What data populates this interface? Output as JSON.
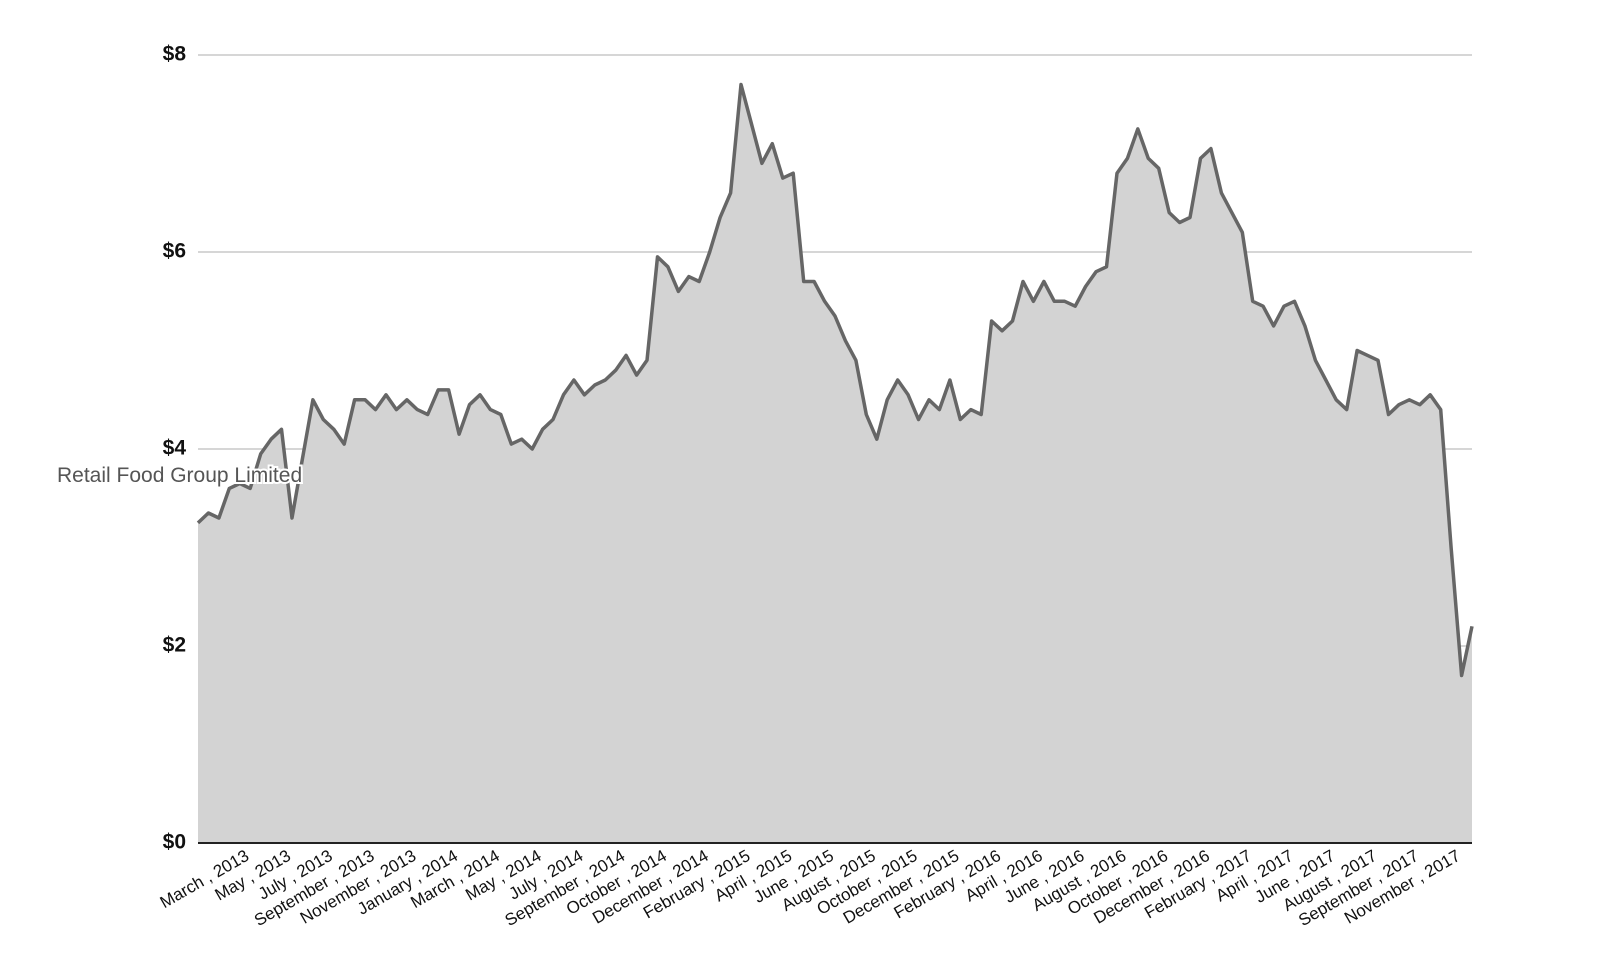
{
  "chart_data": {
    "type": "area",
    "categories": [
      null,
      null,
      null,
      null,
      null,
      "March , 2013",
      null,
      null,
      null,
      "May , 2013",
      null,
      null,
      null,
      "July , 2013",
      null,
      null,
      null,
      "September , 2013",
      null,
      null,
      null,
      "November , 2013",
      null,
      null,
      null,
      "January , 2014",
      null,
      null,
      null,
      "March , 2014",
      null,
      null,
      null,
      "May , 2014",
      null,
      null,
      null,
      "July , 2014",
      null,
      null,
      null,
      "September , 2014",
      null,
      null,
      null,
      "October , 2014",
      null,
      null,
      null,
      "December , 2014",
      null,
      null,
      null,
      "February , 2015",
      null,
      null,
      null,
      "April , 2015",
      null,
      null,
      null,
      "June , 2015",
      null,
      null,
      null,
      "August , 2015",
      null,
      null,
      null,
      "October , 2015",
      null,
      null,
      null,
      "December , 2015",
      null,
      null,
      null,
      "February , 2016",
      null,
      null,
      null,
      "April , 2016",
      null,
      null,
      null,
      "June , 2016",
      null,
      null,
      null,
      "August , 2016",
      null,
      null,
      null,
      "October , 2016",
      null,
      null,
      null,
      "December , 2016",
      null,
      null,
      null,
      "February , 2017",
      null,
      null,
      null,
      "April , 2017",
      null,
      null,
      null,
      "June , 2017",
      null,
      null,
      null,
      "August , 2017",
      null,
      null,
      null,
      "September , 2017",
      null,
      null,
      null,
      "November , 2017",
      null
    ],
    "series": [
      {
        "name": "Retail Food Group Limited",
        "color": "#666666",
        "fill": "#d3d3d3",
        "values": [
          3.25,
          3.35,
          3.3,
          3.6,
          3.65,
          3.6,
          3.95,
          4.1,
          4.2,
          3.3,
          3.9,
          4.5,
          4.3,
          4.2,
          4.05,
          4.5,
          4.5,
          4.4,
          4.55,
          4.4,
          4.5,
          4.4,
          4.35,
          4.6,
          4.6,
          4.15,
          4.45,
          4.55,
          4.4,
          4.35,
          4.05,
          4.1,
          4.0,
          4.2,
          4.3,
          4.55,
          4.7,
          4.55,
          4.65,
          4.7,
          4.8,
          4.95,
          4.75,
          4.9,
          5.95,
          5.85,
          5.6,
          5.75,
          5.7,
          6.0,
          6.35,
          6.6,
          7.7,
          7.3,
          6.9,
          7.1,
          6.75,
          6.8,
          5.7,
          5.7,
          5.5,
          5.35,
          5.1,
          4.9,
          4.35,
          4.1,
          4.5,
          4.7,
          4.55,
          4.3,
          4.5,
          4.4,
          4.7,
          4.3,
          4.4,
          4.35,
          5.3,
          5.2,
          5.3,
          5.7,
          5.5,
          5.7,
          5.5,
          5.5,
          5.45,
          5.65,
          5.8,
          5.85,
          6.8,
          6.95,
          7.25,
          6.95,
          6.85,
          6.4,
          6.3,
          6.35,
          6.95,
          7.05,
          6.6,
          6.4,
          6.2,
          5.5,
          5.45,
          5.25,
          5.45,
          5.5,
          5.25,
          4.9,
          4.7,
          4.5,
          4.4,
          5.0,
          4.95,
          4.9,
          4.35,
          4.45,
          4.5,
          4.45,
          4.55,
          4.4,
          3.0,
          1.7,
          2.2
        ]
      }
    ],
    "ylim": [
      0,
      8
    ],
    "yticks": [
      {
        "value": 0,
        "label": "$0"
      },
      {
        "value": 2,
        "label": "$2"
      },
      {
        "value": 4,
        "label": "$4"
      },
      {
        "value": 6,
        "label": "$6"
      },
      {
        "value": 8,
        "label": "$8"
      }
    ],
    "grid": true
  }
}
